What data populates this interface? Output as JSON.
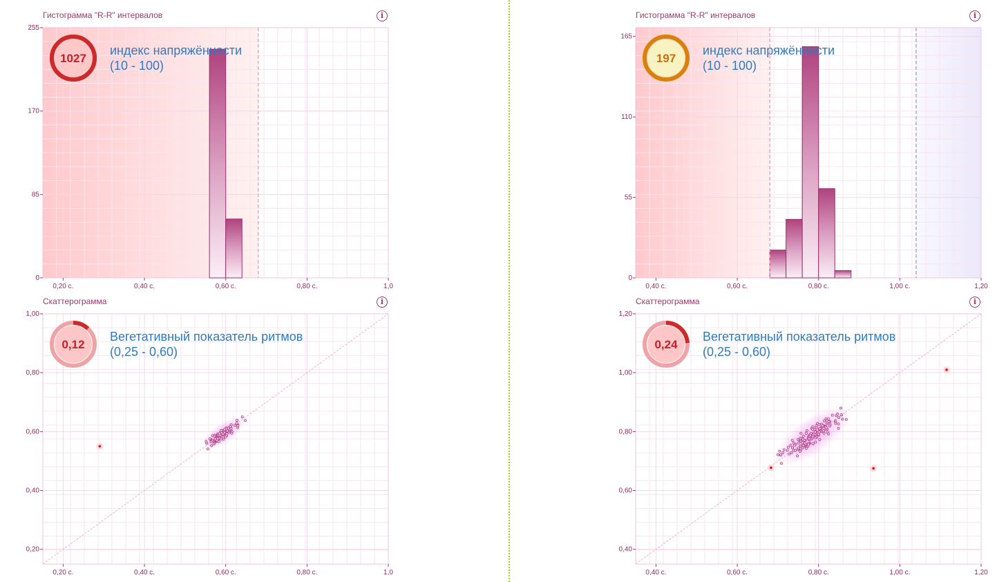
{
  "colors": {
    "accent": "#9b3a6a",
    "bar": "#b0427e",
    "grid": "#f3d7e6",
    "gauge_red": "#cc2b2b",
    "gauge_yellow": "#d9820a",
    "link_blue": "#2f7bbf",
    "divider": "#9bd41c"
  },
  "panels": [
    {
      "title": "Гистограмма \"R-R\" интервалов",
      "info_icon": "info-icon",
      "gauge": {
        "value": "1027",
        "label": "индекс напряжённости",
        "range": "(10 - 100)",
        "style": "red-full",
        "fraction": 1.0
      },
      "chart_data": {
        "type": "bar",
        "xlim": [
          0.15,
          1.0
        ],
        "ylim": [
          0,
          255
        ],
        "x_ticks": [
          "0,20 с.",
          "0,40 с.",
          "0,60 с.",
          "0,80 с.",
          "1,0"
        ],
        "x_tick_values": [
          0.2,
          0.4,
          0.6,
          0.8,
          1.0
        ],
        "y_ticks": [
          "0",
          "85",
          "170",
          "255"
        ],
        "y_tick_values": [
          0,
          85,
          170,
          255
        ],
        "bars": [
          {
            "x": 0.56,
            "w": 0.04,
            "value": 233
          },
          {
            "x": 0.6,
            "w": 0.04,
            "value": 60
          }
        ],
        "zones": [
          {
            "from": 0.15,
            "to": 0.68,
            "color": "red"
          }
        ],
        "vlines": [
          {
            "x": 0.68,
            "color": "#f3a6b4"
          }
        ]
      }
    },
    {
      "title": "Гистограмма \"R-R\" интервалов",
      "info_icon": "info-icon",
      "gauge": {
        "value": "197",
        "label": "индекс напряжённости",
        "range": "(10 - 100)",
        "style": "yellow-full",
        "fraction": 1.0
      },
      "chart_data": {
        "type": "bar",
        "xlim": [
          0.35,
          1.2
        ],
        "ylim": [
          0,
          171
        ],
        "x_ticks": [
          "0,40 с.",
          "0,60 с.",
          "0,80 с.",
          "1,00 с.",
          "1,20"
        ],
        "x_tick_values": [
          0.4,
          0.6,
          0.8,
          1.0,
          1.2
        ],
        "y_ticks": [
          "0",
          "55",
          "110",
          "165"
        ],
        "y_tick_values": [
          0,
          55,
          110,
          165
        ],
        "bars": [
          {
            "x": 0.68,
            "w": 0.04,
            "value": 19
          },
          {
            "x": 0.72,
            "w": 0.04,
            "value": 40
          },
          {
            "x": 0.76,
            "w": 0.04,
            "value": 158
          },
          {
            "x": 0.8,
            "w": 0.04,
            "value": 61
          },
          {
            "x": 0.84,
            "w": 0.04,
            "value": 5
          }
        ],
        "zones": [
          {
            "from": 0.35,
            "to": 0.68,
            "color": "red"
          },
          {
            "from": 1.04,
            "to": 1.2,
            "color": "blue"
          }
        ],
        "vlines": [
          {
            "x": 0.68,
            "color": "#f3a6b4"
          },
          {
            "x": 1.04,
            "color": "#a9a3ee"
          }
        ]
      }
    },
    {
      "title": "Скаттерограмма",
      "info_icon": "info-icon",
      "gauge": {
        "value": "0,12",
        "label": "Вегетативный показатель ритмов",
        "range": "(0,25 - 0,60)",
        "style": "pink-partial",
        "fraction": 0.12
      },
      "chart_data": {
        "type": "scatter",
        "xlim": [
          0.15,
          1.0
        ],
        "ylim": [
          0.15,
          1.0
        ],
        "x_ticks": [
          "0,20 с.",
          "0,40 с.",
          "0,60 с.",
          "0,80 с.",
          "1,0"
        ],
        "x_tick_values": [
          0.2,
          0.4,
          0.6,
          0.8,
          1.0
        ],
        "y_ticks": [
          "0,20",
          "0,40",
          "0,60",
          "0,80",
          "1,00"
        ],
        "y_tick_values": [
          0.2,
          0.4,
          0.6,
          0.8,
          1.0
        ],
        "cluster": {
          "cx": 0.595,
          "cy": 0.595,
          "spread": 0.025,
          "n": 90,
          "seed": 7
        },
        "outliers": [
          {
            "x": 0.29,
            "y": 0.55
          }
        ]
      }
    },
    {
      "title": "Скаттерограмма",
      "info_icon": "info-icon",
      "gauge": {
        "value": "0,24",
        "label": "Вегетативный показатель ритмов",
        "range": "(0,25 - 0,60)",
        "style": "pink-partial",
        "fraction": 0.24
      },
      "chart_data": {
        "type": "scatter",
        "xlim": [
          0.35,
          1.2
        ],
        "ylim": [
          0.35,
          1.2
        ],
        "x_ticks": [
          "0,40 с.",
          "0,60 с.",
          "0,80 с.",
          "1,00 с.",
          "1,20"
        ],
        "x_tick_values": [
          0.4,
          0.6,
          0.8,
          1.0,
          1.2
        ],
        "y_ticks": [
          "0,40",
          "0,60",
          "0,80",
          "1,00",
          "1,20"
        ],
        "y_tick_values": [
          0.4,
          0.6,
          0.8,
          1.0,
          1.2
        ],
        "cluster": {
          "cx": 0.785,
          "cy": 0.785,
          "spread": 0.045,
          "n": 140,
          "seed": 13
        },
        "outliers": [
          {
            "x": 1.115,
            "y": 1.01
          },
          {
            "x": 0.935,
            "y": 0.675
          },
          {
            "x": 0.683,
            "y": 0.677
          }
        ]
      }
    }
  ]
}
